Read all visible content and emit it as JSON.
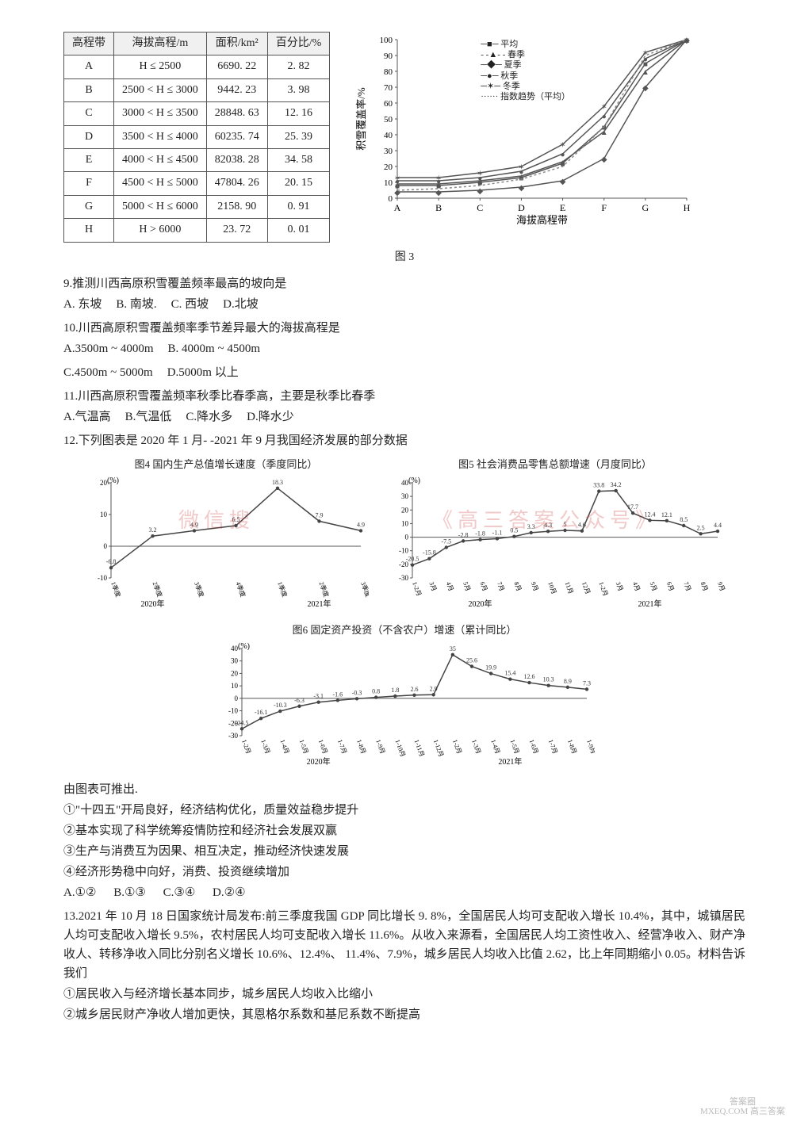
{
  "elevation_table": {
    "headers": [
      "高程带",
      "海拔高程/m",
      "面积/km²",
      "百分比/%"
    ],
    "rows": [
      [
        "A",
        "H ≤ 2500",
        "6690. 22",
        "2. 82"
      ],
      [
        "B",
        "2500 < H ≤ 3000",
        "9442. 23",
        "3. 98"
      ],
      [
        "C",
        "3000 < H ≤ 3500",
        "28848. 63",
        "12. 16"
      ],
      [
        "D",
        "3500 < H ≤ 4000",
        "60235. 74",
        "25. 39"
      ],
      [
        "E",
        "4000 < H ≤ 4500",
        "82038. 28",
        "34. 58"
      ],
      [
        "F",
        "4500 < H ≤ 5000",
        "47804. 26",
        "20. 15"
      ],
      [
        "G",
        "5000 < H ≤ 6000",
        "2158. 90",
        "0. 91"
      ],
      [
        "H",
        "H > 6000",
        "23. 72",
        "0. 01"
      ]
    ]
  },
  "snow_chart": {
    "type": "line",
    "x_categories": [
      "A",
      "B",
      "C",
      "D",
      "E",
      "F",
      "G",
      "H"
    ],
    "x_label": "海拔高程带",
    "y_label": "积雪覆盖率/%",
    "ylim": [
      0,
      100
    ],
    "ytick_step": 10,
    "legend": [
      "平均",
      "春季",
      "夏季",
      "秋季",
      "冬季",
      "指数趋势（平均）"
    ],
    "series": {
      "平均": {
        "color": "#555",
        "marker": "square",
        "values": [
          8,
          8,
          10,
          13,
          22,
          45,
          85,
          100
        ]
      },
      "春季": {
        "color": "#555",
        "marker": "triangle",
        "values": [
          9,
          9,
          11,
          14,
          23,
          42,
          80,
          100
        ]
      },
      "夏季": {
        "color": "#555",
        "marker": "diamond",
        "values": [
          4,
          4,
          5,
          7,
          11,
          25,
          70,
          100
        ]
      },
      "秋季": {
        "color": "#555",
        "marker": "circle",
        "values": [
          11,
          11,
          13,
          17,
          28,
          52,
          88,
          100
        ]
      },
      "冬季": {
        "color": "#555",
        "marker": "star",
        "values": [
          13,
          13,
          16,
          20,
          34,
          58,
          92,
          100
        ]
      },
      "指数趋势（平均）": {
        "color": "#888",
        "dash": "3,3",
        "values": [
          5,
          6,
          8,
          12,
          20,
          45,
          90,
          100
        ]
      }
    },
    "caption": "图 3"
  },
  "q9": {
    "text": "9.推测川西高原积雪覆盖频率最高的坡向是",
    "opts": {
      "A": "A. 东坡",
      "B": "B. 南坡.",
      "C": "C. 西坡",
      "D": "D.北坡"
    }
  },
  "q10": {
    "text": "10.川西高原积雪覆盖频率季节差异最大的海拔高程是",
    "opts": {
      "A": "A.3500m ~ 4000m",
      "B": "B. 4000m ~ 4500m",
      "C": "C.4500m ~ 5000m",
      "D": "D.5000m 以上"
    }
  },
  "q11": {
    "text": "11.川西高原积雪覆盖频率秋季比春季高，主要是秋季比春季",
    "opts": {
      "A": "A.气温高",
      "B": "B.气温低",
      "C": "C.降水多",
      "D": "D.降水少"
    }
  },
  "q12": {
    "text": "12.下列图表是 2020 年 1 月- -2021 年 9 月我国经济发展的部分数据"
  },
  "gdp_chart": {
    "type": "line",
    "title": "图4  国内生产总值增长速度（季度同比）",
    "y_unit": "(%)",
    "ylim": [
      -10,
      20
    ],
    "ytick_step": 10,
    "x_labels": [
      "1季度",
      "2季度",
      "3季度",
      "4季度",
      "1季度",
      "2季度",
      "3季度"
    ],
    "x_year_labels": [
      "2020年",
      "2021年"
    ],
    "values": [
      -6.8,
      3.2,
      4.9,
      6.5,
      18.3,
      7.9,
      4.9
    ],
    "color": "#444"
  },
  "retail_chart": {
    "type": "line",
    "title": "图5  社会消费品零售总额增速（月度同比）",
    "y_unit": "(%)",
    "ylim": [
      -30,
      40
    ],
    "ytick_step": 10,
    "x_labels": [
      "1-2月",
      "3月",
      "4月",
      "5月",
      "6月",
      "7月",
      "8月",
      "9月",
      "10月",
      "11月",
      "12月",
      "1-2月",
      "3月",
      "4月",
      "5月",
      "6月",
      "7月",
      "8月",
      "9月"
    ],
    "x_year_labels": [
      "2020年",
      "2021年"
    ],
    "values": [
      -20.5,
      -15.8,
      -7.5,
      -2.8,
      -1.8,
      -1.1,
      0.5,
      3.3,
      4.3,
      5.0,
      4.6,
      33.8,
      34.2,
      17.7,
      12.4,
      12.1,
      8.5,
      2.5,
      4.4
    ],
    "label_subset": [
      -2.8,
      -1.8,
      -1.1,
      0.5,
      3.3,
      4.3,
      5.0,
      4.6,
      33.8,
      34.2,
      17.7,
      12.4,
      12.1,
      8.5,
      2.5,
      4.4
    ],
    "color": "#444"
  },
  "invest_chart": {
    "type": "line",
    "title": "图6  固定资产投资（不含农户）增速（累计同比）",
    "y_unit": "(%)",
    "ylim": [
      -30,
      40
    ],
    "ytick_step": 10,
    "x_labels": [
      "1-2月",
      "1-3月",
      "1-4月",
      "1-5月",
      "1-6月",
      "1-7月",
      "1-8月",
      "1-9月",
      "1-10月",
      "1-11月",
      "1-12月",
      "1-2月",
      "1-3月",
      "1-4月",
      "1-5月",
      "1-6月",
      "1-7月",
      "1-8月",
      "1-9月"
    ],
    "x_year_labels": [
      "2020年",
      "2021年"
    ],
    "values": [
      -24.5,
      -16.1,
      -10.3,
      -6.3,
      -3.1,
      -1.6,
      -0.3,
      0.8,
      1.8,
      2.6,
      2.9,
      35.0,
      25.6,
      19.9,
      15.4,
      12.6,
      10.3,
      8.9,
      7.3
    ],
    "color": "#444"
  },
  "q12_followup": {
    "lead": "由图表可推出.",
    "items": [
      "①\"十四五\"开局良好，经济结构优化，质量效益稳步提升",
      "②基本实现了科学统筹疫情防控和经济社会发展双赢",
      "③生产与消费互为因果、相互决定，推动经济快速发展",
      "④经济形势稳中向好，消费、投资继续增加"
    ],
    "opts": {
      "A": "A.①②",
      "B": "B.①③",
      "C": "C.③④",
      "D": "D.②④"
    }
  },
  "q13": {
    "text": "13.2021 年 10 月 18 日国家统计局发布:前三季度我国 GDP 同比增长 9. 8%，全国居民人均可支配收入增长 10.4%，其中，城镇居民人均可支配收入增长 9.5%，农村居民人均可支配收入增长 11.6%。从收入来源看，全国居民人均工资性收入、经营净收入、财产净收人、转移净收入同比分别名义增长 10.6%、12.4%、 11.4%、7.9%，城乡居民人均收入比值 2.62，比上年同期缩小 0.05。材料告诉我们",
    "items": [
      "①居民收入与经济增长基本同步，城乡居民人均收入比缩小",
      "②城乡居民财产净收人增加更快，其恩格尔系数和基尼系数不断提高"
    ]
  },
  "watermarks": {
    "left": "微信搜",
    "right": "《高三答案公众号》",
    "corner1": "答案圈",
    "corner2": "MXEQ.COM 高三答案"
  }
}
